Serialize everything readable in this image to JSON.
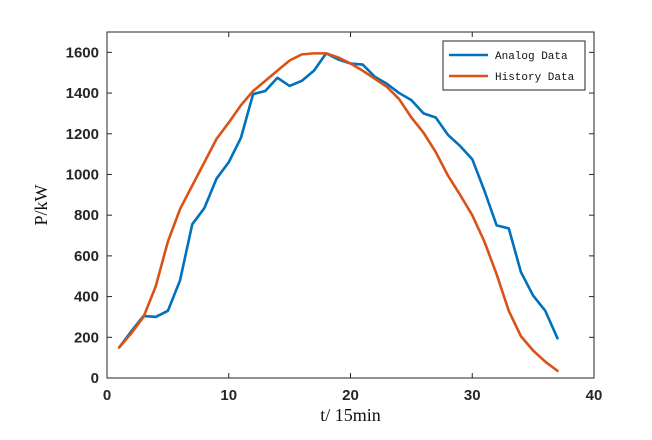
{
  "chart_data": {
    "type": "line",
    "title": "",
    "xlabel": "t/ 15min",
    "ylabel": "P/kW",
    "xlim": [
      0,
      40
    ],
    "ylim": [
      0,
      1700
    ],
    "xticks": [
      0,
      10,
      20,
      30,
      40
    ],
    "yticks": [
      0,
      200,
      400,
      600,
      800,
      1000,
      1200,
      1400,
      1600
    ],
    "xtick_labels": [
      "0",
      "10",
      "20",
      "30",
      "40"
    ],
    "ytick_labels": [
      "0",
      "200",
      "400",
      "600",
      "800",
      "1000",
      "1200",
      "1400",
      "1600"
    ],
    "grid": false,
    "legend_position": "top-right",
    "series": [
      {
        "name": "Analog Data",
        "color": "#0072BD",
        "x": [
          1,
          2,
          3,
          4,
          5,
          6,
          7,
          8,
          9,
          10,
          11,
          12,
          13,
          14,
          15,
          16,
          17,
          18,
          19,
          20,
          21,
          22,
          23,
          24,
          25,
          26,
          27,
          28,
          29,
          30,
          31,
          32,
          33,
          34,
          35,
          36,
          37
        ],
        "values": [
          150,
          230,
          305,
          300,
          330,
          480,
          755,
          835,
          980,
          1060,
          1180,
          1395,
          1410,
          1475,
          1435,
          1460,
          1510,
          1595,
          1565,
          1545,
          1540,
          1480,
          1445,
          1400,
          1365,
          1300,
          1280,
          1195,
          1140,
          1075,
          920,
          750,
          735,
          520,
          405,
          330,
          195
        ]
      },
      {
        "name": "History Data",
        "color": "#D95319",
        "x": [
          1,
          2,
          3,
          4,
          5,
          6,
          7,
          8,
          9,
          10,
          11,
          12,
          13,
          14,
          15,
          16,
          17,
          18,
          19,
          20,
          21,
          22,
          23,
          24,
          25,
          26,
          27,
          28,
          29,
          30,
          31,
          32,
          33,
          34,
          35,
          36,
          37
        ],
        "values": [
          150,
          220,
          300,
          450,
          670,
          830,
          945,
          1060,
          1175,
          1255,
          1340,
          1410,
          1460,
          1510,
          1560,
          1590,
          1595,
          1595,
          1575,
          1545,
          1510,
          1470,
          1430,
          1370,
          1280,
          1205,
          1110,
          995,
          900,
          800,
          670,
          510,
          330,
          205,
          135,
          80,
          35
        ]
      }
    ]
  }
}
